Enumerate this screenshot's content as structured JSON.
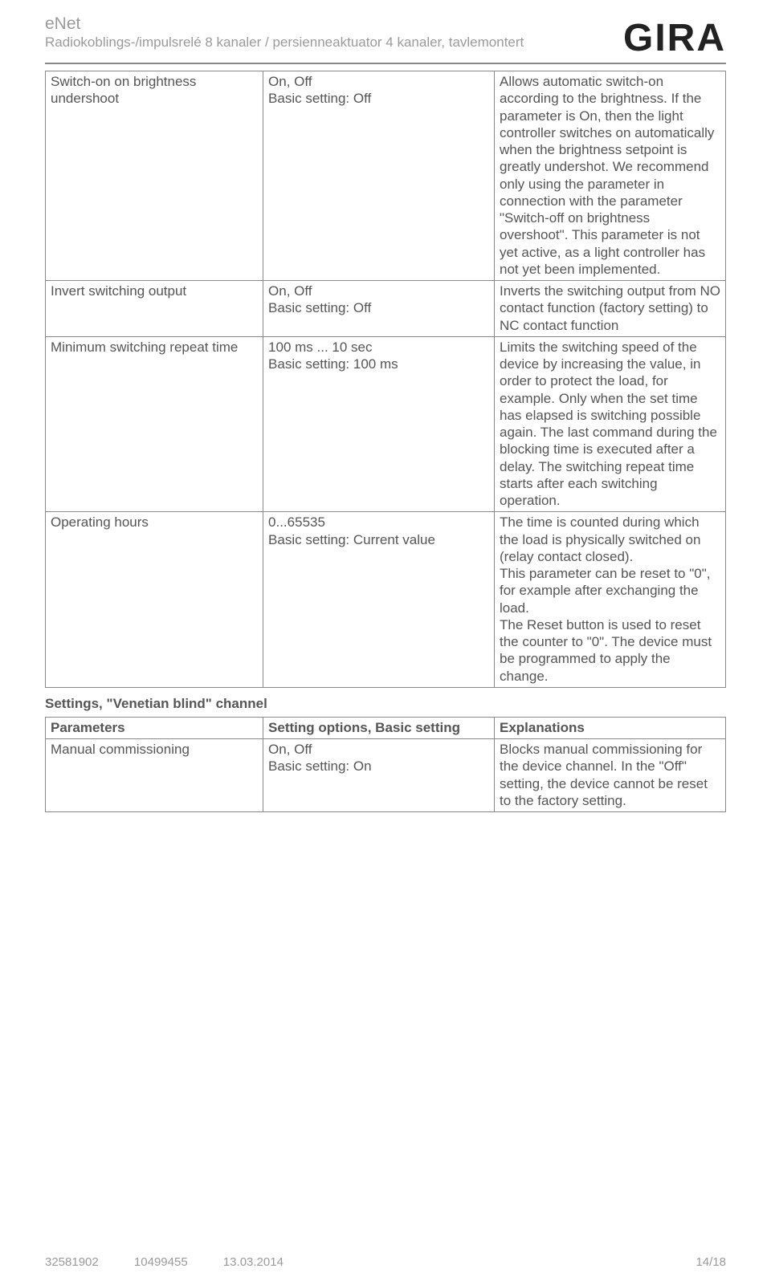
{
  "header": {
    "title": "eNet",
    "subtitle": "Radiokoblings-/impulsrelé 8 kanaler / persienneaktuator 4 kanaler, tavlemontert",
    "logo": "GIRA"
  },
  "table1": {
    "rows": [
      {
        "param": "Switch-on on brightness undershoot",
        "setting": [
          "On, Off",
          "Basic setting: Off"
        ],
        "explain": "Allows automatic switch-on according to the brightness. If the parameter is On, then the light controller switches on automatically when the brightness setpoint is greatly undershot. We recommend only using the parameter in connection with the parameter \"Switch-off on brightness overshoot\". This parameter is not yet active, as a light controller has not yet been implemented."
      },
      {
        "param": "Invert switching output",
        "setting": [
          "On, Off",
          "Basic setting: Off"
        ],
        "explain": "Inverts the switching output from NO contact function (factory setting) to NC contact function"
      },
      {
        "param": "Minimum switching repeat time",
        "setting": [
          "100 ms ... 10 sec",
          "Basic setting: 100 ms"
        ],
        "explain": "Limits the switching speed of the device by increasing the value, in order to protect the load, for example. Only when the set time has elapsed is switching possible again. The last command during the blocking time is executed after a delay. The switching repeat time starts after each switching operation."
      },
      {
        "param": "Operating hours",
        "setting": [
          "0...65535",
          "Basic setting: Current value"
        ],
        "explain": "The time is counted during which the load is physically switched on (relay contact closed).\nThis parameter can be reset to \"0\", for example after exchanging the load.\nThe Reset button is used to reset the counter to \"0\". The device must be programmed to apply the change."
      }
    ]
  },
  "section_heading": "Settings, \"Venetian blind\" channel",
  "table2": {
    "headers": [
      "Parameters",
      "Setting options, Basic setting",
      "Explanations"
    ],
    "rows": [
      {
        "param": "Manual commissioning",
        "setting": [
          "On, Off",
          "Basic setting: On"
        ],
        "explain": "Blocks manual commissioning for the device channel. In the \"Off\" setting, the device cannot be reset to the factory setting."
      }
    ]
  },
  "footer": {
    "code1": "32581902",
    "code2": "10499455",
    "date": "13.03.2014",
    "page": "14/18"
  }
}
